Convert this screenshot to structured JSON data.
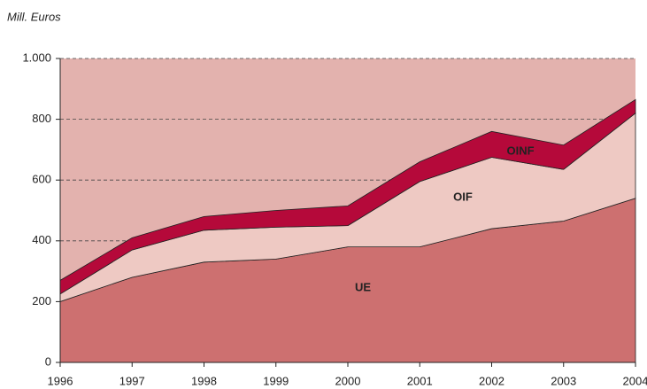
{
  "chart_data": {
    "type": "stacked_area",
    "subtitle": "Mill. Euros",
    "x": [
      1996,
      1997,
      1998,
      1999,
      2000,
      2001,
      2002,
      2003,
      2004
    ],
    "series": [
      {
        "name": "UE",
        "color": "#cd7070",
        "values": [
          200,
          280,
          330,
          340,
          380,
          380,
          440,
          465,
          540
        ]
      },
      {
        "name": "OIF",
        "color": "#eec9c3",
        "values": [
          25,
          90,
          105,
          105,
          70,
          215,
          235,
          170,
          280
        ]
      },
      {
        "name": "OINF",
        "color": "#b5093a",
        "values": [
          45,
          40,
          45,
          55,
          65,
          65,
          85,
          80,
          45
        ]
      }
    ],
    "xlim": [
      1996,
      2004
    ],
    "xticks": [
      1996,
      1997,
      1998,
      1999,
      2000,
      2001,
      2002,
      2003,
      2004
    ],
    "ylim": [
      0,
      1000
    ],
    "yticks": [
      0,
      200,
      400,
      600,
      800,
      {
        "value": 1000,
        "label": "1.000"
      }
    ],
    "grid": true,
    "background": "#e3b2ae"
  }
}
